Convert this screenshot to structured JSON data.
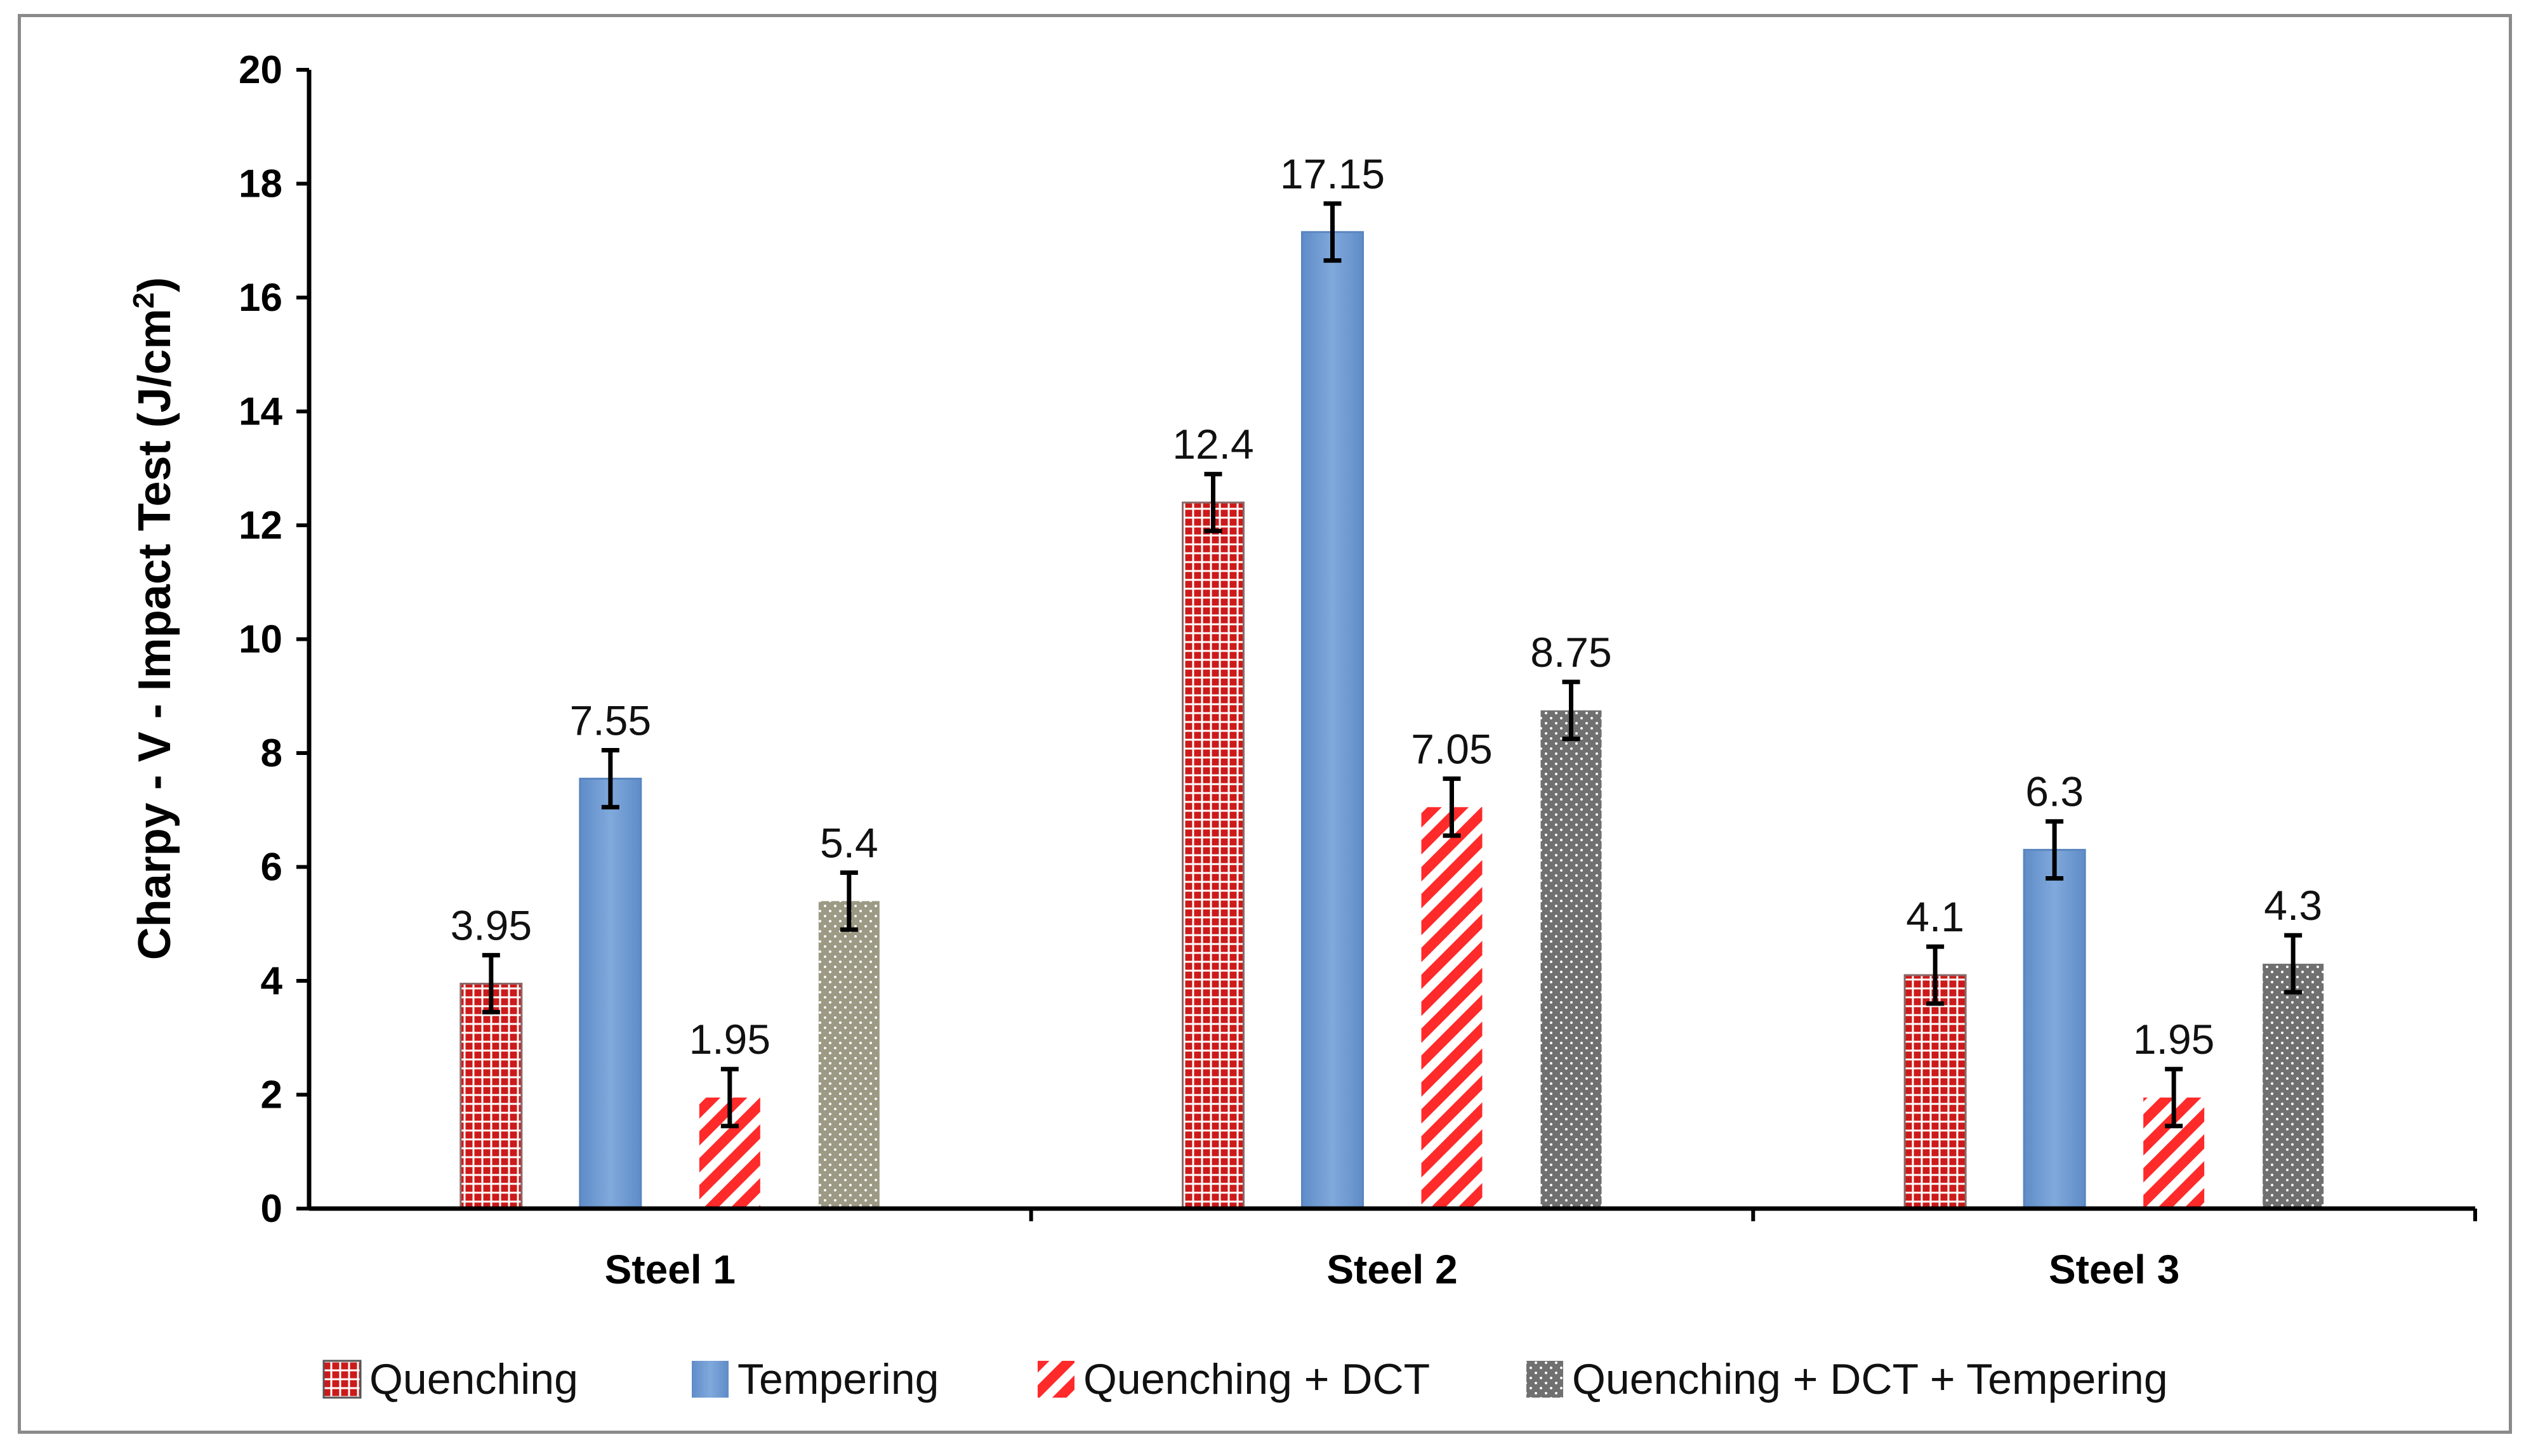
{
  "chart_data": {
    "type": "bar",
    "title": "",
    "xlabel": "",
    "ylabel": "Charpy - V - Impact Test (J/cm",
    "ylabel_superscript": "2",
    "ylabel_close": ")",
    "ylim": [
      0,
      20
    ],
    "yticks": [
      0,
      2,
      4,
      6,
      8,
      10,
      12,
      14,
      16,
      18,
      20
    ],
    "categories": [
      "Steel 1",
      "Steel 2",
      "Steel 3"
    ],
    "legend_position": "bottom",
    "series": [
      {
        "name": "Quenching",
        "pattern": "grid",
        "color": "#cc1a1a",
        "values": [
          3.95,
          12.4,
          4.1
        ],
        "errors": [
          0.5,
          0.5,
          0.5
        ],
        "labels": [
          "3.95",
          "12.4",
          "4.1"
        ]
      },
      {
        "name": "Tempering",
        "pattern": "solid",
        "color": "#6f9bd2",
        "values": [
          7.55,
          17.15,
          6.3
        ],
        "errors": [
          0.5,
          0.5,
          0.5
        ],
        "labels": [
          "7.55",
          "17.15",
          "6.3"
        ]
      },
      {
        "name": "Quenching + DCT",
        "pattern": "diagonal",
        "color": "#ff2a2a",
        "values": [
          1.95,
          7.05,
          1.95
        ],
        "errors": [
          0.5,
          0.5,
          0.5
        ],
        "labels": [
          "1.95",
          "7.05",
          "1.95"
        ]
      },
      {
        "name": "Quenching + DCT + Tempering",
        "pattern": "dots",
        "colors": [
          "#9c9a85",
          "#707070",
          "#707070"
        ],
        "values": [
          5.4,
          8.75,
          4.3
        ],
        "errors": [
          0.5,
          0.5,
          0.5
        ],
        "labels": [
          "5.4",
          "8.75",
          "4.3"
        ]
      }
    ]
  }
}
